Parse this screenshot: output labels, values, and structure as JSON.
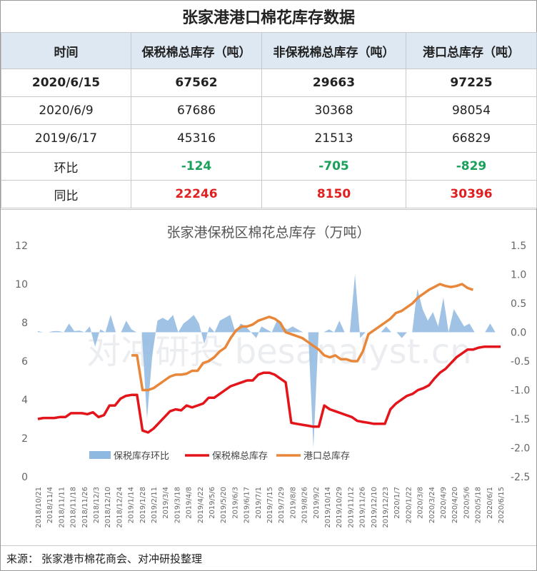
{
  "page_title": "张家港港口棉花库存数据",
  "table": {
    "headers": [
      "时间",
      "保税棉总库存（吨）",
      "非保税棉总库存（吨）",
      "港口总库存（吨）"
    ],
    "rows": [
      {
        "date": "2020/6/15",
        "bonded": "67562",
        "non_bonded": "29663",
        "total": "97225"
      },
      {
        "date": "2020/6/9",
        "bonded": "67686",
        "non_bonded": "30368",
        "total": "98054"
      },
      {
        "date": "2019/6/17",
        "bonded": "45316",
        "non_bonded": "21513",
        "total": "66829"
      },
      {
        "date": "环比",
        "bonded": "-124",
        "non_bonded": "-705",
        "total": "-829"
      },
      {
        "date": "同比",
        "bonded": "22246",
        "non_bonded": "8150",
        "total": "30396"
      }
    ]
  },
  "colors": {
    "header_bg": "#dde8f3",
    "positive_change": "#e02020",
    "negative_change": "#1aa05a",
    "bar_series": "#8fb9e0",
    "bonded_line": "#e3151a",
    "port_line": "#e8873a"
  },
  "chart_data": {
    "type": "line",
    "title": "张家港保税区棉花总库存（万吨）",
    "left_axis": {
      "min": 0,
      "max": 12,
      "ticks": [
        "0",
        "2",
        "4",
        "6",
        "8",
        "10",
        "12"
      ]
    },
    "right_axis": {
      "min": -2.5,
      "max": 1.5,
      "ticks": [
        "-2.5",
        "-2.0",
        "-1.5",
        "-1.0",
        "-0.5",
        "0.0",
        "0.5",
        "1.0",
        "1.5"
      ]
    },
    "x_tick_labels": [
      "2018/10/21",
      "2018/11/4",
      "2018/11/11",
      "2018/11/18",
      "2018/11/26",
      "2018/12/3",
      "2018/12/10",
      "2018/12/24",
      "2019/1/14",
      "2019/1/28",
      "2019/2/11",
      "2019/3/4",
      "2019/3/18",
      "2019/4/8",
      "2019/4/22",
      "2019/5/6",
      "2019/5/20",
      "2019/6/3",
      "2019/6/17",
      "2019/7/1",
      "2019/7/15",
      "2019/7/29",
      "2019/8/8",
      "2019/8/26",
      "2019/9/2",
      "2019/10/14",
      "2019/10/29",
      "2019/11/12",
      "2019/11/26",
      "2019/12/10",
      "2019/12/23",
      "2020/1/7",
      "2020/1/22",
      "2020/3/8",
      "2020/3/24",
      "2020/4/9",
      "2020/4/20",
      "2020/5/6",
      "2020/5/18",
      "2020/6/1",
      "2020/6/15"
    ],
    "legend": [
      "保税库存环比",
      "保税棉总库存",
      "港口总库存"
    ],
    "legend_position": "bottom",
    "series": [
      {
        "name": "保税库存环比",
        "axis": "right",
        "kind": "area",
        "values": [
          0.02,
          0.0,
          0.0,
          0.02,
          0.02,
          0.0,
          0.15,
          0.02,
          0.03,
          0.0,
          0.1,
          -0.25,
          0.05,
          0.0,
          0.3,
          0.0,
          0.0,
          0.2,
          0.05,
          0.0,
          0.0,
          -1.5,
          -0.4,
          0.2,
          0.25,
          0.2,
          0.3,
          0.0,
          0.15,
          0.22,
          0.3,
          0.15,
          -0.2,
          0.1,
          0.0,
          0.2,
          0.25,
          0.3,
          0.0,
          0.15,
          0.1,
          0.0,
          -0.1,
          0.1,
          0.05,
          0.0,
          0.2,
          0.1,
          0.05,
          0.1,
          0.05,
          0.0,
          0.0,
          -2.0,
          0.0,
          0.0,
          0.05,
          0.0,
          0.2,
          0.0,
          0.0,
          1.0,
          -0.1,
          0.0,
          0.0,
          0.0,
          0.0,
          0.1,
          0.0,
          0.0,
          -0.1,
          0.0,
          0.0,
          0.75,
          0.4,
          0.2,
          0.35,
          0.1,
          0.6,
          0.0,
          0.4,
          0.25,
          0.1,
          0.15,
          0.0,
          0.0,
          0.0,
          0.15,
          0.0,
          0.0
        ]
      },
      {
        "name": "保税棉总库存",
        "axis": "left",
        "kind": "line",
        "values": [
          3.0,
          3.05,
          3.05,
          3.05,
          3.1,
          3.1,
          3.3,
          3.3,
          3.3,
          3.25,
          3.35,
          3.1,
          3.2,
          3.7,
          3.7,
          4.05,
          4.2,
          4.25,
          4.25,
          2.4,
          2.3,
          2.5,
          2.8,
          3.1,
          3.4,
          3.5,
          3.45,
          3.7,
          3.6,
          3.7,
          3.8,
          4.1,
          4.1,
          4.3,
          4.5,
          4.7,
          4.8,
          4.9,
          5.0,
          5.0,
          5.3,
          5.4,
          5.4,
          5.3,
          5.1,
          4.9,
          2.8,
          2.75,
          2.7,
          2.65,
          2.6,
          2.6,
          3.7,
          3.5,
          3.4,
          3.3,
          3.2,
          3.1,
          2.9,
          2.85,
          2.8,
          2.75,
          2.75,
          2.75,
          3.5,
          3.8,
          4.0,
          4.2,
          4.3,
          4.5,
          4.6,
          4.75,
          5.1,
          5.4,
          5.6,
          5.9,
          6.2,
          6.4,
          6.6,
          6.6,
          6.7,
          6.75,
          6.75,
          6.75,
          6.75
        ]
      },
      {
        "name": "港口总库存",
        "axis": "left",
        "kind": "line",
        "start_index": 17,
        "values": [
          6.3,
          6.3,
          4.5,
          4.5,
          4.6,
          4.8,
          5.0,
          5.2,
          5.3,
          5.3,
          5.35,
          5.5,
          5.5,
          5.9,
          6.0,
          6.2,
          6.5,
          6.7,
          7.2,
          7.6,
          7.8,
          7.8,
          7.9,
          8.1,
          8.2,
          8.3,
          8.2,
          8.0,
          7.5,
          7.4,
          7.3,
          7.2,
          7.0,
          6.8,
          6.6,
          6.3,
          6.2,
          6.3,
          6.1,
          6.1,
          6.0,
          6.0,
          6.5,
          7.4,
          7.6,
          7.8,
          8.0,
          8.2,
          8.5,
          8.6,
          8.8,
          9.0,
          9.3,
          9.5,
          9.7,
          9.85,
          10.0,
          9.9,
          9.85,
          9.9,
          10.0,
          9.8,
          9.7
        ]
      }
    ],
    "watermark": "对冲研投 besanalyst.cn"
  },
  "footer": {
    "label": "来源：",
    "source": "张家港市棉花商会、对冲研投整理"
  }
}
